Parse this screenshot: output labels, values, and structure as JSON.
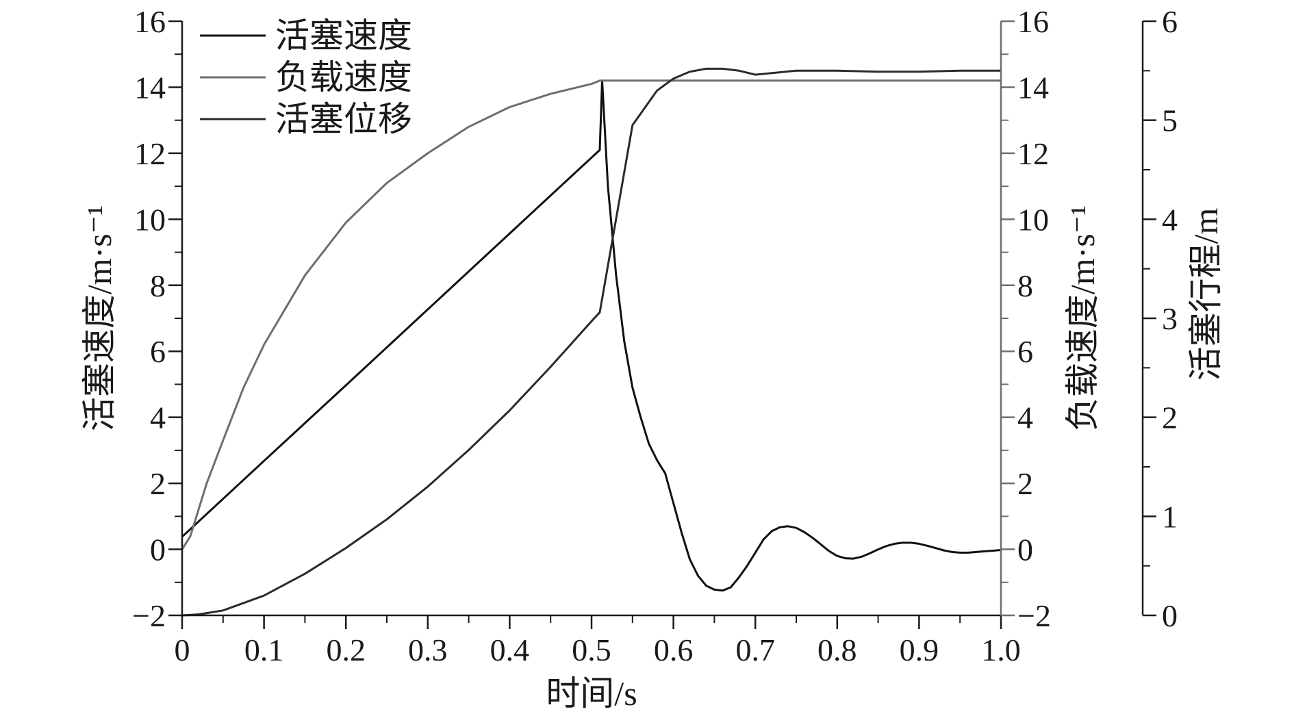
{
  "chart_data": {
    "type": "line",
    "xlabel": "时间/s",
    "x_ticks": [
      "0",
      "0.1",
      "0.2",
      "0.3",
      "0.4",
      "0.5",
      "0.6",
      "0.7",
      "0.8",
      "0.9",
      "1.0"
    ],
    "xlim": [
      0,
      1.0
    ],
    "axes": [
      {
        "id": "left",
        "label": "活塞速度/m·s⁻¹",
        "ylim": [
          -2,
          16
        ],
        "ticks": [
          "−2",
          "0",
          "2",
          "4",
          "6",
          "8",
          "10",
          "12",
          "14",
          "16"
        ]
      },
      {
        "id": "right1",
        "label": "负载速度/m·s⁻¹",
        "ylim": [
          -2,
          16
        ],
        "ticks": [
          "−2",
          "0",
          "2",
          "4",
          "6",
          "8",
          "10",
          "12",
          "14",
          "16"
        ]
      },
      {
        "id": "right2",
        "label": "活塞行程/m",
        "ylim": [
          0,
          6
        ],
        "ticks": [
          "0",
          "1",
          "2",
          "3",
          "4",
          "5",
          "6"
        ]
      }
    ],
    "legend": [
      "活塞速度",
      "负载速度",
      "活塞位移"
    ],
    "legend_position": "top-left",
    "series": [
      {
        "name": "活塞速度",
        "axis": "left",
        "color": "#111111",
        "x": [
          0,
          0.1,
          0.2,
          0.3,
          0.4,
          0.45,
          0.51,
          0.513,
          0.52,
          0.53,
          0.54,
          0.55,
          0.56,
          0.57,
          0.58,
          0.59,
          0.6,
          0.61,
          0.62,
          0.63,
          0.64,
          0.65,
          0.66,
          0.67,
          0.68,
          0.69,
          0.7,
          0.71,
          0.72,
          0.73,
          0.74,
          0.75,
          0.76,
          0.77,
          0.78,
          0.79,
          0.8,
          0.81,
          0.82,
          0.83,
          0.84,
          0.85,
          0.86,
          0.87,
          0.88,
          0.89,
          0.9,
          0.91,
          0.92,
          0.93,
          0.94,
          0.95,
          0.96,
          0.97,
          0.98,
          0.99,
          1.0
        ],
        "y": [
          0.38,
          2.68,
          4.97,
          7.27,
          9.57,
          10.72,
          12.1,
          14.2,
          11.0,
          8.3,
          6.3,
          4.9,
          4.0,
          3.2,
          2.7,
          2.3,
          1.4,
          0.5,
          -0.3,
          -0.8,
          -1.1,
          -1.22,
          -1.25,
          -1.15,
          -0.85,
          -0.5,
          -0.1,
          0.3,
          0.55,
          0.67,
          0.7,
          0.65,
          0.52,
          0.35,
          0.15,
          -0.05,
          -0.2,
          -0.27,
          -0.28,
          -0.22,
          -0.12,
          0.0,
          0.1,
          0.17,
          0.2,
          0.2,
          0.17,
          0.11,
          0.04,
          -0.03,
          -0.08,
          -0.1,
          -0.1,
          -0.08,
          -0.06,
          -0.04,
          -0.02
        ]
      },
      {
        "name": "负载速度",
        "axis": "right1",
        "color": "#6e6e6e",
        "x": [
          0,
          0.01,
          0.02,
          0.03,
          0.05,
          0.075,
          0.1,
          0.15,
          0.2,
          0.25,
          0.3,
          0.35,
          0.4,
          0.45,
          0.5,
          0.51,
          0.6,
          0.7,
          0.8,
          0.9,
          1.0
        ],
        "y": [
          0,
          0.4,
          1.2,
          2.0,
          3.3,
          4.9,
          6.2,
          8.3,
          9.9,
          11.1,
          12.0,
          12.8,
          13.4,
          13.8,
          14.1,
          14.2,
          14.2,
          14.2,
          14.2,
          14.2,
          14.2
        ]
      },
      {
        "name": "活塞位移",
        "axis": "right2",
        "color": "#2a2a2a",
        "x": [
          0,
          0.02,
          0.05,
          0.1,
          0.15,
          0.2,
          0.25,
          0.3,
          0.35,
          0.4,
          0.45,
          0.5,
          0.51,
          0.55,
          0.58,
          0.6,
          0.62,
          0.64,
          0.66,
          0.68,
          0.7,
          0.75,
          0.8,
          0.85,
          0.9,
          0.95,
          1.0
        ],
        "y": [
          0.0,
          0.01,
          0.05,
          0.2,
          0.42,
          0.68,
          0.97,
          1.3,
          1.67,
          2.07,
          2.51,
          2.97,
          3.06,
          4.95,
          5.3,
          5.42,
          5.49,
          5.52,
          5.52,
          5.5,
          5.46,
          5.5,
          5.5,
          5.49,
          5.49,
          5.5,
          5.5
        ]
      }
    ]
  }
}
